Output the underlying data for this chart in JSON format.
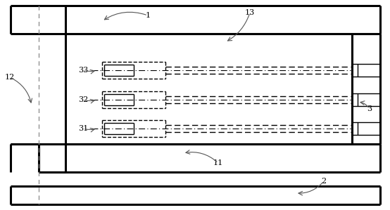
{
  "bg_color": "#ffffff",
  "line_color": "#000000",
  "lw_thick": 2.2,
  "lw_thin": 1.0,
  "fig_w": 5.54,
  "fig_h": 2.99,
  "label_fs": 8
}
